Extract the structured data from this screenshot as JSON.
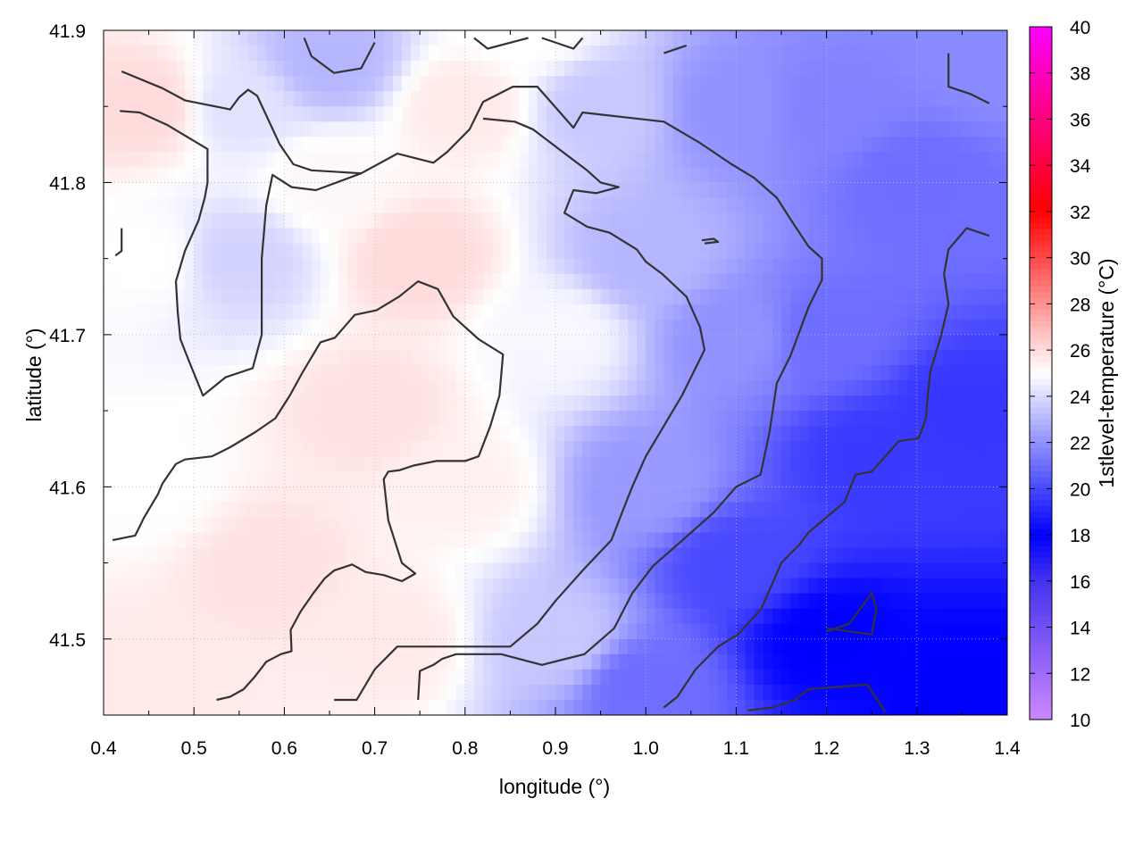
{
  "chart_data": {
    "type": "heatmap",
    "xlabel": "longitude (°)",
    "ylabel": "latitude (°)",
    "colorbar_label": "1stlevel-temperature (°C)",
    "xlim": [
      0.4,
      1.4
    ],
    "ylim": [
      41.45,
      41.9
    ],
    "x_ticks": [
      0.4,
      0.5,
      0.6,
      0.7,
      0.8,
      0.9,
      1.0,
      1.1,
      1.2,
      1.3,
      1.4
    ],
    "x_tick_labels": [
      "0.4",
      "0.5",
      "0.6",
      "0.7",
      "0.8",
      "0.9",
      "1.0",
      "1.1",
      "1.2",
      "1.3",
      "1.4"
    ],
    "y_ticks": [
      41.5,
      41.6,
      41.7,
      41.8,
      41.9
    ],
    "y_tick_labels": [
      "41.5",
      "41.6",
      "41.7",
      "41.8",
      "41.9"
    ],
    "colorbar_range": [
      10,
      40
    ],
    "colorbar_ticks": [
      10,
      12,
      14,
      16,
      18,
      20,
      22,
      24,
      26,
      28,
      30,
      32,
      34,
      36,
      38,
      40
    ],
    "colorbar_tick_labels": [
      "10",
      "12",
      "14",
      "16",
      "18",
      "20",
      "22",
      "24",
      "26",
      "28",
      "30",
      "32",
      "34",
      "36",
      "38",
      "40"
    ],
    "colormap": [
      {
        "value": 10,
        "color": "#cc88ff"
      },
      {
        "value": 16,
        "color": "#4433ee"
      },
      {
        "value": 18,
        "color": "#0000ff"
      },
      {
        "value": 25,
        "color": "#ffffff"
      },
      {
        "value": 32,
        "color": "#ff0000"
      },
      {
        "value": 40,
        "color": "#ff00ff"
      }
    ],
    "grid": true,
    "contour_color": "#333333",
    "field_points": [
      {
        "lon": 0.45,
        "lat": 41.85,
        "t": 26.0
      },
      {
        "lon": 0.45,
        "lat": 41.75,
        "t": 25.0
      },
      {
        "lon": 0.45,
        "lat": 41.6,
        "t": 25.0
      },
      {
        "lon": 0.45,
        "lat": 41.47,
        "t": 25.6
      },
      {
        "lon": 0.55,
        "lat": 41.75,
        "t": 23.8
      },
      {
        "lon": 0.55,
        "lat": 41.85,
        "t": 24.2
      },
      {
        "lon": 0.58,
        "lat": 41.55,
        "t": 25.8
      },
      {
        "lon": 0.65,
        "lat": 41.88,
        "t": 23.0
      },
      {
        "lon": 0.65,
        "lat": 41.8,
        "t": 25.2
      },
      {
        "lon": 0.7,
        "lat": 41.65,
        "t": 25.8
      },
      {
        "lon": 0.72,
        "lat": 41.5,
        "t": 25.6
      },
      {
        "lon": 0.75,
        "lat": 41.75,
        "t": 26.0
      },
      {
        "lon": 0.8,
        "lat": 41.85,
        "t": 25.6
      },
      {
        "lon": 0.8,
        "lat": 41.6,
        "t": 25.4
      },
      {
        "lon": 0.87,
        "lat": 41.9,
        "t": 25.0
      },
      {
        "lon": 0.9,
        "lat": 41.7,
        "t": 24.8
      },
      {
        "lon": 0.9,
        "lat": 41.5,
        "t": 23.5
      },
      {
        "lon": 0.95,
        "lat": 41.85,
        "t": 23.5
      },
      {
        "lon": 1.0,
        "lat": 41.75,
        "t": 23.0
      },
      {
        "lon": 1.0,
        "lat": 41.6,
        "t": 22.2
      },
      {
        "lon": 1.0,
        "lat": 41.47,
        "t": 21.0
      },
      {
        "lon": 1.1,
        "lat": 41.85,
        "t": 22.0
      },
      {
        "lon": 1.1,
        "lat": 41.7,
        "t": 22.0
      },
      {
        "lon": 1.1,
        "lat": 41.55,
        "t": 20.0
      },
      {
        "lon": 1.2,
        "lat": 41.85,
        "t": 21.6
      },
      {
        "lon": 1.2,
        "lat": 41.7,
        "t": 21.0
      },
      {
        "lon": 1.2,
        "lat": 41.5,
        "t": 18.0
      },
      {
        "lon": 1.25,
        "lat": 41.62,
        "t": 19.6
      },
      {
        "lon": 1.3,
        "lat": 41.8,
        "t": 21.0
      },
      {
        "lon": 1.35,
        "lat": 41.65,
        "t": 19.5
      },
      {
        "lon": 1.35,
        "lat": 41.47,
        "t": 18.0
      },
      {
        "lon": 1.38,
        "lat": 41.88,
        "t": 21.8
      }
    ],
    "contours": [
      [
        [
          0.42,
          41.873
        ],
        [
          0.465,
          41.862
        ],
        [
          0.49,
          41.854
        ],
        [
          0.54,
          41.848
        ],
        [
          0.55,
          41.856
        ],
        [
          0.56,
          41.861
        ],
        [
          0.57,
          41.857
        ],
        [
          0.595,
          41.825
        ],
        [
          0.61,
          41.812
        ],
        [
          0.63,
          41.808
        ],
        [
          0.685,
          41.806
        ],
        [
          0.725,
          41.819
        ],
        [
          0.765,
          41.813
        ],
        [
          0.78,
          41.82
        ],
        [
          0.805,
          41.835
        ],
        [
          0.82,
          41.853
        ],
        [
          0.853,
          41.863
        ],
        [
          0.88,
          41.863
        ],
        [
          0.92,
          41.836
        ],
        [
          0.93,
          41.846
        ],
        [
          1.02,
          41.84
        ],
        [
          1.06,
          41.826
        ],
        [
          1.095,
          41.812
        ],
        [
          1.12,
          41.803
        ],
        [
          1.145,
          41.79
        ],
        [
          1.16,
          41.776
        ],
        [
          1.18,
          41.758
        ],
        [
          1.195,
          41.75
        ],
        [
          1.195,
          41.736
        ],
        [
          1.18,
          41.718
        ],
        [
          1.16,
          41.686
        ],
        [
          1.145,
          41.668
        ],
        [
          1.137,
          41.636
        ],
        [
          1.127,
          41.608
        ],
        [
          1.1,
          41.6
        ],
        [
          1.075,
          41.583
        ],
        [
          1.035,
          41.562
        ],
        [
          1.008,
          41.548
        ],
        [
          0.985,
          41.53
        ],
        [
          0.965,
          41.507
        ],
        [
          0.932,
          41.49
        ],
        [
          0.885,
          41.483
        ],
        [
          0.84,
          41.49
        ],
        [
          0.79,
          41.49
        ],
        [
          0.775,
          41.487
        ],
        [
          0.765,
          41.483
        ],
        [
          0.75,
          41.479
        ],
        [
          0.748,
          41.46
        ]
      ],
      [
        [
          0.418,
          41.847
        ],
        [
          0.44,
          41.846
        ],
        [
          0.47,
          41.838
        ],
        [
          0.515,
          41.822
        ],
        [
          0.515,
          41.8
        ],
        [
          0.512,
          41.79
        ],
        [
          0.505,
          41.775
        ],
        [
          0.49,
          41.755
        ],
        [
          0.48,
          41.735
        ],
        [
          0.482,
          41.715
        ],
        [
          0.485,
          41.697
        ],
        [
          0.495,
          41.682
        ],
        [
          0.51,
          41.66
        ],
        [
          0.535,
          41.672
        ],
        [
          0.565,
          41.678
        ],
        [
          0.575,
          41.7
        ],
        [
          0.575,
          41.75
        ],
        [
          0.58,
          41.785
        ],
        [
          0.587,
          41.805
        ],
        [
          0.608,
          41.797
        ],
        [
          0.635,
          41.795
        ],
        [
          0.685,
          41.806
        ]
      ],
      [
        [
          0.82,
          41.842
        ],
        [
          0.855,
          41.84
        ],
        [
          0.875,
          41.835
        ],
        [
          0.935,
          41.808
        ],
        [
          0.95,
          41.8
        ],
        [
          0.97,
          41.797
        ],
        [
          0.945,
          41.793
        ],
        [
          0.92,
          41.795
        ],
        [
          0.91,
          41.78
        ],
        [
          0.935,
          41.771
        ],
        [
          0.96,
          41.767
        ],
        [
          0.99,
          41.756
        ],
        [
          1.0,
          41.748
        ],
        [
          1.018,
          41.74
        ],
        [
          1.045,
          41.725
        ],
        [
          1.06,
          41.705
        ],
        [
          1.065,
          41.69
        ],
        [
          1.04,
          41.66
        ],
        [
          1.02,
          41.64
        ],
        [
          1.01,
          41.63
        ],
        [
          1.0,
          41.62
        ],
        [
          0.985,
          41.6
        ],
        [
          0.975,
          41.585
        ],
        [
          0.962,
          41.565
        ],
        [
          0.93,
          41.545
        ],
        [
          0.9,
          41.525
        ],
        [
          0.88,
          41.51
        ],
        [
          0.85,
          41.495
        ],
        [
          0.82,
          41.495
        ],
        [
          0.79,
          41.495
        ],
        [
          0.745,
          41.495
        ],
        [
          0.725,
          41.495
        ],
        [
          0.7,
          41.48
        ],
        [
          0.68,
          41.46
        ],
        [
          0.655,
          41.46
        ]
      ],
      [
        [
          0.41,
          41.565
        ],
        [
          0.435,
          41.568
        ],
        [
          0.445,
          41.58
        ],
        [
          0.46,
          41.595
        ],
        [
          0.465,
          41.602
        ],
        [
          0.48,
          41.615
        ],
        [
          0.49,
          41.618
        ],
        [
          0.52,
          41.62
        ],
        [
          0.54,
          41.626
        ],
        [
          0.568,
          41.636
        ],
        [
          0.59,
          41.645
        ],
        [
          0.606,
          41.66
        ],
        [
          0.62,
          41.675
        ],
        [
          0.633,
          41.688
        ],
        [
          0.64,
          41.695
        ],
        [
          0.656,
          41.698
        ],
        [
          0.678,
          41.713
        ],
        [
          0.702,
          41.716
        ],
        [
          0.727,
          41.725
        ],
        [
          0.748,
          41.735
        ],
        [
          0.77,
          41.73
        ],
        [
          0.787,
          41.712
        ],
        [
          0.815,
          41.697
        ],
        [
          0.842,
          41.687
        ],
        [
          0.838,
          41.66
        ],
        [
          0.828,
          41.64
        ],
        [
          0.815,
          41.62
        ],
        [
          0.8,
          41.617
        ],
        [
          0.768,
          41.617
        ],
        [
          0.743,
          41.614
        ],
        [
          0.728,
          41.611
        ],
        [
          0.715,
          41.61
        ],
        [
          0.71,
          41.605
        ],
        [
          0.715,
          41.578
        ],
        [
          0.73,
          41.55
        ],
        [
          0.745,
          41.543
        ],
        [
          0.73,
          41.538
        ],
        [
          0.71,
          41.542
        ],
        [
          0.69,
          41.544
        ],
        [
          0.675,
          41.549
        ],
        [
          0.655,
          41.545
        ],
        [
          0.645,
          41.54
        ],
        [
          0.632,
          41.53
        ],
        [
          0.618,
          41.518
        ],
        [
          0.607,
          41.506
        ],
        [
          0.608,
          41.492
        ],
        [
          0.596,
          41.49
        ],
        [
          0.58,
          41.485
        ],
        [
          0.567,
          41.475
        ],
        [
          0.555,
          41.467
        ],
        [
          0.54,
          41.462
        ],
        [
          0.525,
          41.46
        ]
      ],
      [
        [
          0.413,
          41.752
        ],
        [
          0.42,
          41.755
        ],
        [
          0.42,
          41.77
        ]
      ],
      [
        [
          0.622,
          41.895
        ],
        [
          0.63,
          41.883
        ],
        [
          0.655,
          41.872
        ],
        [
          0.685,
          41.875
        ],
        [
          0.7,
          41.892
        ]
      ],
      [
        [
          0.81,
          41.895
        ],
        [
          0.825,
          41.888
        ],
        [
          0.857,
          41.893
        ],
        [
          0.87,
          41.895
        ]
      ],
      [
        [
          0.885,
          41.895
        ],
        [
          0.92,
          41.888
        ],
        [
          0.93,
          41.895
        ]
      ],
      [
        [
          1.02,
          41.885
        ],
        [
          1.045,
          41.89
        ]
      ],
      [
        [
          1.065,
          41.76
        ],
        [
          1.08,
          41.761
        ],
        [
          1.075,
          41.763
        ],
        [
          1.062,
          41.762
        ]
      ],
      [
        [
          1.335,
          41.885
        ],
        [
          1.335,
          41.863
        ],
        [
          1.36,
          41.858
        ],
        [
          1.38,
          41.852
        ]
      ],
      [
        [
          1.38,
          41.765
        ],
        [
          1.355,
          41.77
        ],
        [
          1.335,
          41.756
        ],
        [
          1.33,
          41.74
        ],
        [
          1.335,
          41.72
        ],
        [
          1.327,
          41.7
        ],
        [
          1.315,
          41.676
        ],
        [
          1.312,
          41.66
        ],
        [
          1.31,
          41.645
        ],
        [
          1.302,
          41.632
        ],
        [
          1.28,
          41.63
        ],
        [
          1.265,
          41.62
        ],
        [
          1.25,
          41.61
        ],
        [
          1.232,
          41.608
        ],
        [
          1.22,
          41.59
        ],
        [
          1.18,
          41.57
        ],
        [
          1.17,
          41.562
        ],
        [
          1.15,
          41.55
        ],
        [
          1.128,
          41.52
        ],
        [
          1.102,
          41.503
        ],
        [
          1.08,
          41.495
        ],
        [
          1.055,
          41.48
        ],
        [
          1.035,
          41.462
        ],
        [
          1.02,
          41.455
        ]
      ],
      [
        [
          1.2,
          41.505
        ],
        [
          1.225,
          41.51
        ],
        [
          1.25,
          41.53
        ],
        [
          1.255,
          41.52
        ],
        [
          1.25,
          41.503
        ],
        [
          1.2,
          41.507
        ]
      ],
      [
        [
          1.113,
          41.453
        ],
        [
          1.14,
          41.455
        ],
        [
          1.165,
          41.46
        ],
        [
          1.18,
          41.467
        ],
        [
          1.245,
          41.47
        ],
        [
          1.265,
          41.452
        ]
      ]
    ]
  }
}
